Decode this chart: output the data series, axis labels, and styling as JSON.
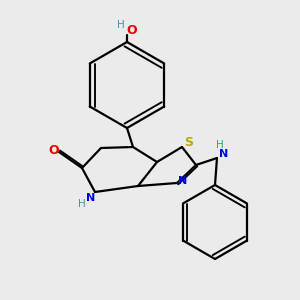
{
  "bg_color": "#ebebeb",
  "atom_colors": {
    "C": "#000000",
    "N": "#0000ee",
    "O": "#ee0000",
    "S": "#bbaa00",
    "H": "#3a9a9a"
  },
  "bond_color": "#000000",
  "lw": 1.6
}
